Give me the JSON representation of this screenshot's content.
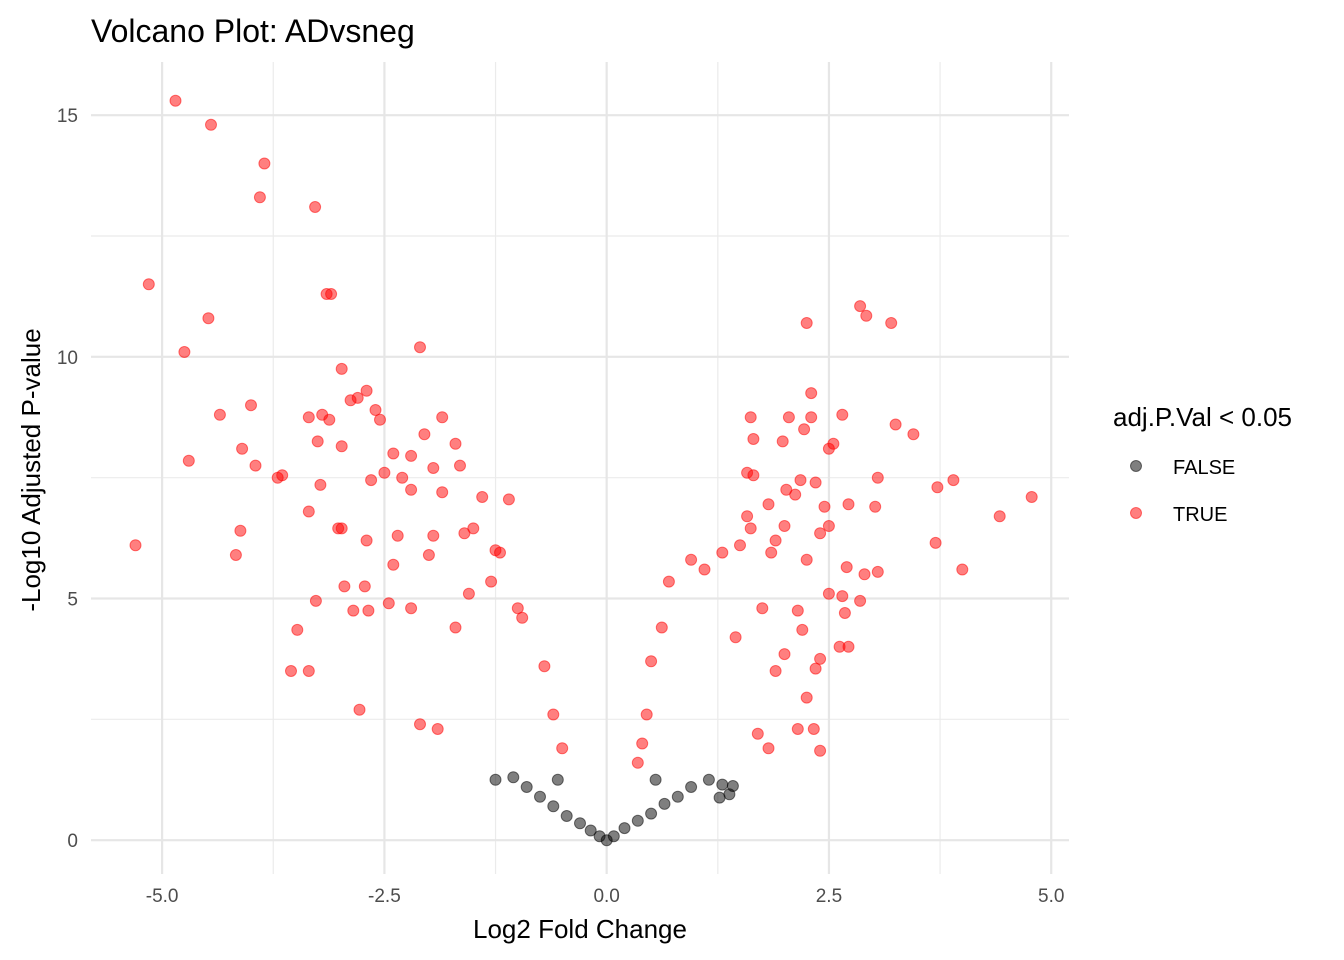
{
  "chart_data": {
    "type": "scatter",
    "title": "Volcano Plot: ADvsneg",
    "xlabel": "Log2 Fold Change",
    "ylabel": "-Log10 Adjusted P-value",
    "xlim": [
      -5.8,
      5.2
    ],
    "ylim": [
      -0.7,
      16.1
    ],
    "xticks": [
      -5.0,
      -2.5,
      0.0,
      2.5,
      5.0
    ],
    "xtick_labels": [
      "-5.0",
      "-2.5",
      "0.0",
      "2.5",
      "5.0"
    ],
    "yticks": [
      0,
      5,
      10,
      15
    ],
    "ytick_labels": [
      "0",
      "5",
      "10",
      "15"
    ],
    "grid": true,
    "legend": {
      "title": "adj.P.Val < 0.05",
      "placement": "right",
      "entries": [
        {
          "label": "FALSE",
          "color": "#000000"
        },
        {
          "label": "TRUE",
          "color": "#ff0000"
        }
      ]
    },
    "series": [
      {
        "name": "TRUE",
        "color": "#ff0000",
        "points": [
          [
            -4.85,
            15.3
          ],
          [
            -4.45,
            14.8
          ],
          [
            -3.85,
            14.0
          ],
          [
            -3.9,
            13.3
          ],
          [
            -3.28,
            13.1
          ],
          [
            -5.15,
            11.5
          ],
          [
            -3.15,
            11.3
          ],
          [
            -3.1,
            11.3
          ],
          [
            -4.48,
            10.8
          ],
          [
            -4.75,
            10.1
          ],
          [
            -2.1,
            10.2
          ],
          [
            -2.98,
            9.75
          ],
          [
            -2.7,
            9.3
          ],
          [
            -2.8,
            9.15
          ],
          [
            -2.88,
            9.1
          ],
          [
            -4.0,
            9.0
          ],
          [
            -4.35,
            8.8
          ],
          [
            -3.35,
            8.75
          ],
          [
            -3.2,
            8.8
          ],
          [
            -3.12,
            8.7
          ],
          [
            -2.6,
            8.9
          ],
          [
            -2.55,
            8.7
          ],
          [
            -1.85,
            8.75
          ],
          [
            -3.25,
            8.25
          ],
          [
            -2.98,
            8.15
          ],
          [
            -4.1,
            8.1
          ],
          [
            -1.7,
            8.2
          ],
          [
            -2.4,
            8.0
          ],
          [
            -2.2,
            7.95
          ],
          [
            -2.05,
            8.4
          ],
          [
            -4.7,
            7.85
          ],
          [
            -3.95,
            7.75
          ],
          [
            -1.65,
            7.75
          ],
          [
            -3.7,
            7.5
          ],
          [
            -3.65,
            7.55
          ],
          [
            -2.5,
            7.6
          ],
          [
            -2.3,
            7.5
          ],
          [
            -1.95,
            7.7
          ],
          [
            -3.22,
            7.35
          ],
          [
            -2.65,
            7.45
          ],
          [
            -1.85,
            7.2
          ],
          [
            -1.4,
            7.1
          ],
          [
            -1.1,
            7.05
          ],
          [
            -3.35,
            6.8
          ],
          [
            -2.2,
            7.25
          ],
          [
            -4.12,
            6.4
          ],
          [
            -3.02,
            6.45
          ],
          [
            -2.98,
            6.45
          ],
          [
            -2.35,
            6.3
          ],
          [
            -1.5,
            6.45
          ],
          [
            -5.3,
            6.1
          ],
          [
            -4.17,
            5.9
          ],
          [
            -2.7,
            6.2
          ],
          [
            -1.95,
            6.3
          ],
          [
            -1.6,
            6.35
          ],
          [
            -1.25,
            6.0
          ],
          [
            -1.2,
            5.95
          ],
          [
            -2.95,
            5.25
          ],
          [
            -2.72,
            5.25
          ],
          [
            -2.4,
            5.7
          ],
          [
            -2.0,
            5.9
          ],
          [
            -3.27,
            4.95
          ],
          [
            -2.85,
            4.75
          ],
          [
            -2.68,
            4.75
          ],
          [
            -2.45,
            4.9
          ],
          [
            -3.48,
            4.35
          ],
          [
            -3.55,
            3.5
          ],
          [
            -3.35,
            3.5
          ],
          [
            -2.2,
            4.8
          ],
          [
            -2.78,
            2.7
          ],
          [
            -2.1,
            2.4
          ],
          [
            -1.9,
            2.3
          ],
          [
            -1.7,
            4.4
          ],
          [
            -1.55,
            5.1
          ],
          [
            -1.3,
            5.35
          ],
          [
            -1.0,
            4.8
          ],
          [
            -0.95,
            4.6
          ],
          [
            -0.7,
            3.6
          ],
          [
            -0.6,
            2.6
          ],
          [
            -0.5,
            1.9
          ],
          [
            2.25,
            10.7
          ],
          [
            2.85,
            11.05
          ],
          [
            2.92,
            10.85
          ],
          [
            3.2,
            10.7
          ],
          [
            2.3,
            9.25
          ],
          [
            1.62,
            8.75
          ],
          [
            2.05,
            8.75
          ],
          [
            2.3,
            8.75
          ],
          [
            2.65,
            8.8
          ],
          [
            3.25,
            8.6
          ],
          [
            3.45,
            8.4
          ],
          [
            1.65,
            8.3
          ],
          [
            2.22,
            8.5
          ],
          [
            2.55,
            8.2
          ],
          [
            1.98,
            8.25
          ],
          [
            2.5,
            8.1
          ],
          [
            1.58,
            7.6
          ],
          [
            1.65,
            7.55
          ],
          [
            2.18,
            7.45
          ],
          [
            2.35,
            7.4
          ],
          [
            3.05,
            7.5
          ],
          [
            3.72,
            7.3
          ],
          [
            3.9,
            7.45
          ],
          [
            4.78,
            7.1
          ],
          [
            1.82,
            6.95
          ],
          [
            2.02,
            7.25
          ],
          [
            2.12,
            7.15
          ],
          [
            2.45,
            6.9
          ],
          [
            2.72,
            6.95
          ],
          [
            3.02,
            6.9
          ],
          [
            4.42,
            6.7
          ],
          [
            1.58,
            6.7
          ],
          [
            1.62,
            6.45
          ],
          [
            2.0,
            6.5
          ],
          [
            2.5,
            6.5
          ],
          [
            1.9,
            6.2
          ],
          [
            2.4,
            6.35
          ],
          [
            3.7,
            6.15
          ],
          [
            1.5,
            6.1
          ],
          [
            1.85,
            5.95
          ],
          [
            2.25,
            5.8
          ],
          [
            2.7,
            5.65
          ],
          [
            3.05,
            5.55
          ],
          [
            4.0,
            5.6
          ],
          [
            2.9,
            5.5
          ],
          [
            2.65,
            5.05
          ],
          [
            2.85,
            4.95
          ],
          [
            2.15,
            4.75
          ],
          [
            2.5,
            5.1
          ],
          [
            1.75,
            4.8
          ],
          [
            2.2,
            4.35
          ],
          [
            2.68,
            4.7
          ],
          [
            1.45,
            4.2
          ],
          [
            2.0,
            3.85
          ],
          [
            2.4,
            3.75
          ],
          [
            2.62,
            4.0
          ],
          [
            2.72,
            4.0
          ],
          [
            2.35,
            3.55
          ],
          [
            1.9,
            3.5
          ],
          [
            2.25,
            2.95
          ],
          [
            2.15,
            2.3
          ],
          [
            2.33,
            2.3
          ],
          [
            2.4,
            1.85
          ],
          [
            1.82,
            1.9
          ],
          [
            1.7,
            2.2
          ],
          [
            0.7,
            5.35
          ],
          [
            0.95,
            5.8
          ],
          [
            1.1,
            5.6
          ],
          [
            1.3,
            5.95
          ],
          [
            0.62,
            4.4
          ],
          [
            0.5,
            3.7
          ],
          [
            0.45,
            2.6
          ],
          [
            0.4,
            2.0
          ],
          [
            0.35,
            1.6
          ]
        ]
      },
      {
        "name": "FALSE",
        "color": "#000000",
        "points": [
          [
            -1.25,
            1.25
          ],
          [
            -1.05,
            1.3
          ],
          [
            -0.9,
            1.1
          ],
          [
            -0.75,
            0.9
          ],
          [
            -0.6,
            0.7
          ],
          [
            -0.45,
            0.5
          ],
          [
            -0.3,
            0.35
          ],
          [
            -0.18,
            0.2
          ],
          [
            -0.08,
            0.08
          ],
          [
            0.0,
            0.0
          ],
          [
            0.08,
            0.08
          ],
          [
            0.2,
            0.25
          ],
          [
            0.35,
            0.4
          ],
          [
            0.5,
            0.55
          ],
          [
            0.65,
            0.75
          ],
          [
            0.8,
            0.9
          ],
          [
            0.95,
            1.1
          ],
          [
            1.15,
            1.25
          ],
          [
            1.3,
            1.15
          ],
          [
            1.38,
            0.95
          ],
          [
            1.27,
            0.88
          ],
          [
            1.42,
            1.12
          ],
          [
            -0.55,
            1.25
          ],
          [
            0.55,
            1.25
          ]
        ]
      }
    ]
  }
}
